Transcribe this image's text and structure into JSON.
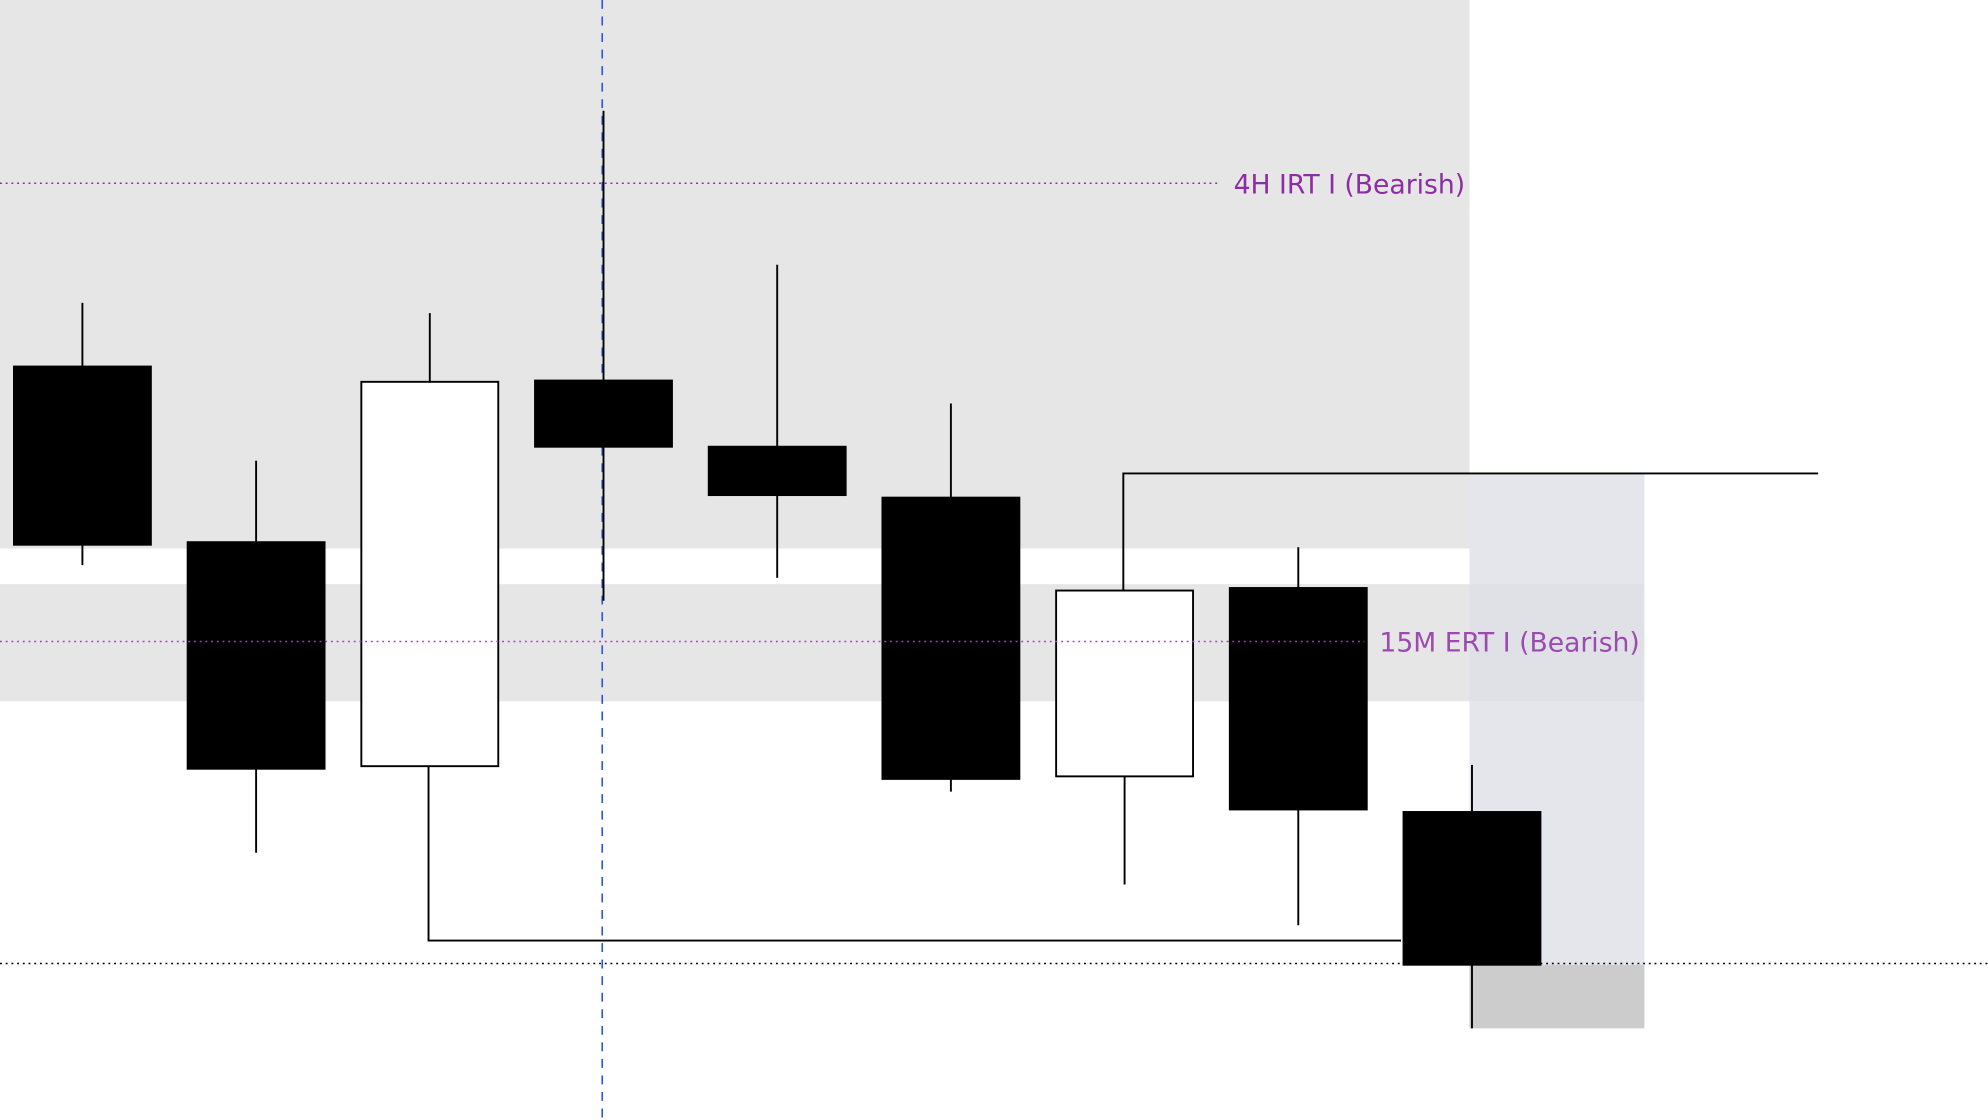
{
  "chart_data": {
    "type": "candlestick",
    "ylim": [
      0,
      880
    ],
    "open": [
      592,
      454,
      278,
      581,
      529,
      489,
      270,
      418,
      242
    ],
    "high": [
      642,
      518,
      634,
      793,
      672,
      563,
      416,
      450,
      279
    ],
    "low": [
      436,
      210,
      278,
      408,
      426,
      258,
      185,
      153,
      72
    ],
    "close": [
      452,
      276,
      580,
      529,
      491,
      268,
      416,
      244,
      122
    ],
    "up_color": "#ffffff",
    "down_color": "#000000",
    "levels": [
      {
        "label": "4H IRT I (Bearish)",
        "value": 736,
        "color": "#8e2ba6"
      },
      {
        "label": "15M ERT I (Bearish)",
        "value": 376,
        "color": "#9b4bb0"
      }
    ],
    "reference_line": 123
  }
}
